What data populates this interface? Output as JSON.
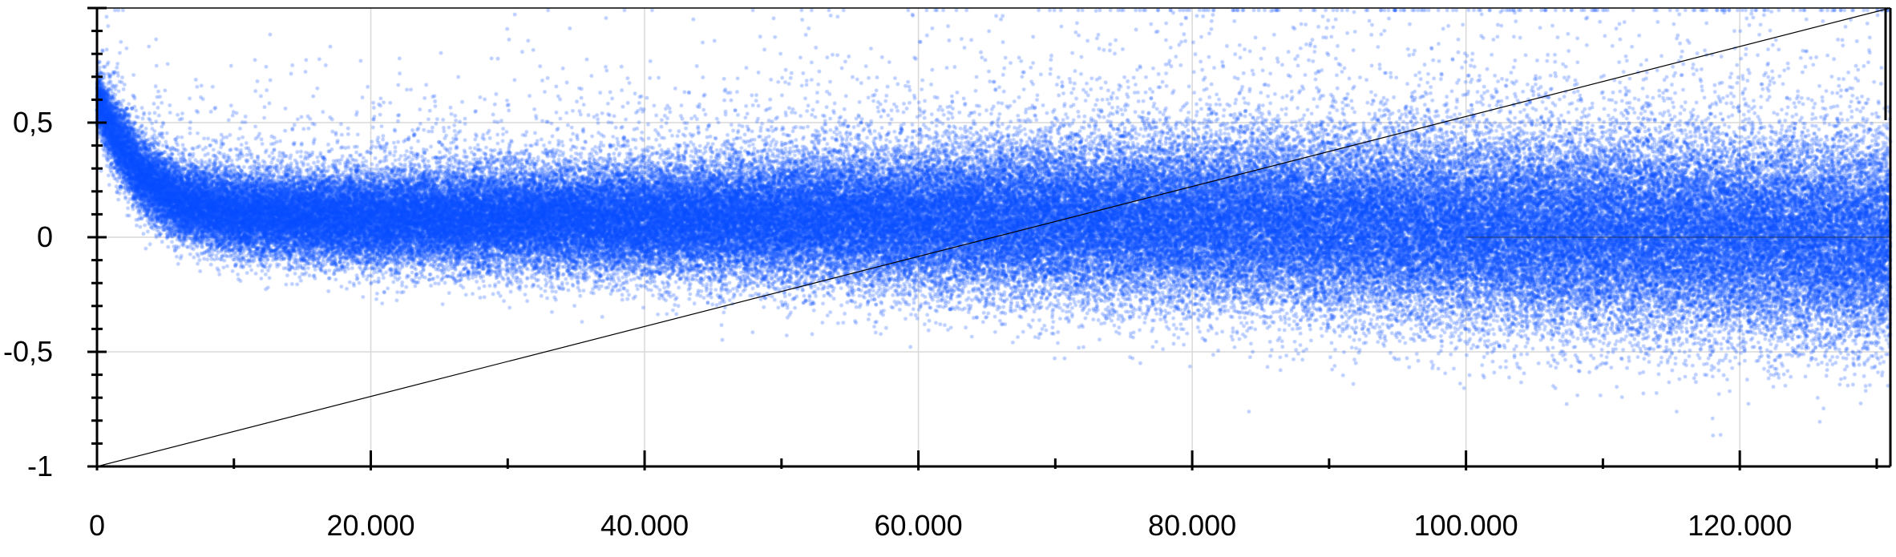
{
  "chart_data": {
    "type": "scatter",
    "title": "",
    "xlabel": "",
    "ylabel": "",
    "xlim": [
      0,
      131000
    ],
    "ylim": [
      -1,
      1
    ],
    "x_ticks": [
      {
        "value": 0,
        "label": "0"
      },
      {
        "value": 20000,
        "label": "20.000"
      },
      {
        "value": 40000,
        "label": "40.000"
      },
      {
        "value": 60000,
        "label": "60.000"
      },
      {
        "value": 80000,
        "label": "80.000"
      },
      {
        "value": 100000,
        "label": "100.000"
      },
      {
        "value": 120000,
        "label": "120.000"
      }
    ],
    "y_ticks": [
      {
        "value": -1,
        "label": "-1"
      },
      {
        "value": -0.5,
        "label": "-0,5"
      },
      {
        "value": 0,
        "label": "0"
      },
      {
        "value": 0.5,
        "label": "0,5"
      }
    ],
    "x_minor_step": 10000,
    "y_minor_step": 0.1,
    "grid": true,
    "point_color": "#0a50ff",
    "point_count": 130000,
    "series": [
      {
        "name": "points",
        "trend_x": [
          0,
          1000,
          3000,
          6000,
          10000,
          20000,
          40000,
          60000,
          80000,
          100000,
          120000,
          131000
        ],
        "trend_center": [
          0.6,
          0.48,
          0.28,
          0.15,
          0.1,
          0.08,
          0.08,
          0.08,
          0.07,
          0.04,
          0.0,
          -0.02
        ],
        "trend_spread": [
          0.06,
          0.08,
          0.08,
          0.08,
          0.09,
          0.1,
          0.12,
          0.15,
          0.18,
          0.2,
          0.21,
          0.22
        ]
      }
    ],
    "reference_line": {
      "start": [
        0,
        -1
      ],
      "end": [
        131000,
        1
      ]
    },
    "horizontal_line": {
      "y": 0,
      "x_start": 100000,
      "x_end": 131000
    }
  }
}
